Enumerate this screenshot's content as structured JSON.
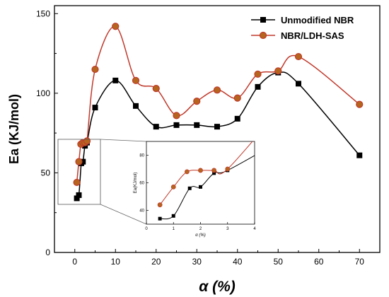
{
  "chart_data": {
    "type": "line",
    "xlabel": "α (%)",
    "ylabel": "Ea (KJ/mol)",
    "xlim": [
      -5,
      75
    ],
    "ylim": [
      0,
      155
    ],
    "x_ticks": [
      0,
      10,
      20,
      30,
      40,
      50,
      60,
      70
    ],
    "y_ticks": [
      0,
      50,
      100,
      150
    ],
    "legend_position": "top-right",
    "series": [
      {
        "name": "Unmodified NBR",
        "color": "#000000",
        "marker": "square",
        "x": [
          0.5,
          1,
          1.6,
          2,
          2.5,
          3,
          5,
          10,
          15,
          20,
          25,
          30,
          35,
          40,
          45,
          50,
          55,
          70
        ],
        "y": [
          34,
          36,
          56,
          57,
          67,
          69,
          91,
          108,
          92,
          79,
          80,
          80,
          79,
          84,
          104,
          113,
          106,
          61
        ]
      },
      {
        "name": "NBR/LDH-SAS",
        "color": "#c0392b",
        "marker": "circle",
        "x": [
          0.5,
          1,
          1.5,
          2,
          2.5,
          3,
          5,
          10,
          15,
          20,
          25,
          30,
          35,
          40,
          45,
          50,
          55,
          70
        ],
        "y": [
          44,
          57,
          68,
          69,
          69,
          70,
          115,
          142,
          108,
          103,
          86,
          95,
          102,
          97,
          112,
          114,
          123,
          93
        ]
      }
    ],
    "inset": {
      "xlabel": "α (%)",
      "ylabel": "Ea(KJ/mol)",
      "xlim": [
        0,
        4
      ],
      "ylim": [
        30,
        90
      ],
      "x_ticks": [
        0,
        1,
        2,
        3,
        4
      ],
      "y_ticks": [
        40,
        60,
        80
      ]
    }
  },
  "colors": {
    "series1": "#000000",
    "series2": "#c0392b",
    "marker2_fill": "#b5651d"
  }
}
